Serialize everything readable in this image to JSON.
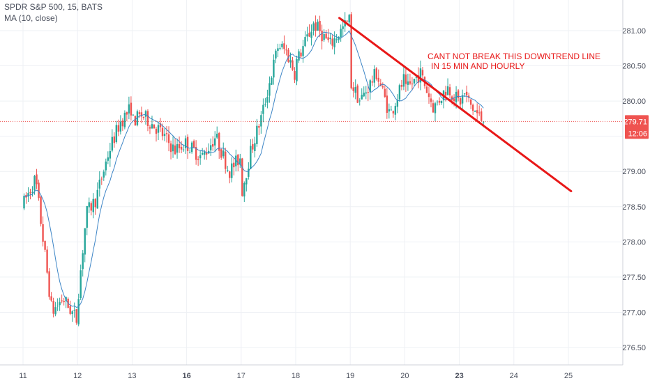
{
  "legend": {
    "symbol_line": "SPDR S&P 500, 15, BATS",
    "indicator_line": "MA (10, close)"
  },
  "annotation": {
    "line1": "CANT NOT BREAK THIS DOWNTREND LINE",
    "line2": "IN 15 MIN AND HOURLY"
  },
  "colors": {
    "up": "#26a69a",
    "down": "#ef5350",
    "ma": "#3d85c6",
    "trendline": "#e81818",
    "price_label_bg": "#ef5350",
    "grid": "#eef0f4",
    "axis_text": "#4a4f5c"
  },
  "chart_data": {
    "type": "candlestick",
    "y_axis": {
      "min": 276.35,
      "max": 281.35,
      "ticks": [
        276.5,
        277.0,
        277.5,
        278.0,
        278.5,
        279.0,
        279.5,
        280.0,
        280.5,
        281.0
      ],
      "tick_labels": [
        "276.50",
        "277.00",
        "277.50",
        "278.00",
        "278.50",
        "279.00",
        "",
        "280.00",
        "280.50",
        "281.00"
      ]
    },
    "x_axis": {
      "labels": [
        "11",
        "12",
        "13",
        "16",
        "17",
        "18",
        "19",
        "20",
        "23",
        "24",
        "25"
      ],
      "bold": [
        "16",
        "23"
      ]
    },
    "last_price": {
      "value": 279.71,
      "label": "279.71",
      "countdown": "12:06"
    },
    "ma_period": 10,
    "trend_line": {
      "from_day": 5.8,
      "from_price": 281.18,
      "to_day": 10.05,
      "to_price": 278.72
    },
    "days": [
      {
        "label": "11",
        "anchors": [
          [
            278.5,
            0.0
          ],
          [
            278.9,
            0.25
          ],
          [
            277.0,
            0.55
          ],
          [
            277.2,
            0.75
          ],
          [
            276.9,
            1.0
          ]
        ]
      },
      {
        "label": "12",
        "anchors": [
          [
            277.0,
            0.0
          ],
          [
            278.4,
            0.18
          ],
          [
            278.6,
            0.35
          ],
          [
            279.3,
            0.6
          ],
          [
            279.7,
            0.8
          ],
          [
            279.9,
            1.0
          ]
        ]
      },
      {
        "label": "13",
        "anchors": [
          [
            279.7,
            0.0
          ],
          [
            279.8,
            0.2
          ],
          [
            279.6,
            0.5
          ],
          [
            279.3,
            0.8
          ],
          [
            279.4,
            1.0
          ]
        ]
      },
      {
        "label": "16",
        "anchors": [
          [
            279.4,
            0.0
          ],
          [
            279.2,
            0.3
          ],
          [
            279.5,
            0.55
          ],
          [
            279.0,
            0.8
          ],
          [
            279.2,
            1.0
          ]
        ]
      },
      {
        "label": "17",
        "anchors": [
          [
            278.6,
            0.0
          ],
          [
            279.3,
            0.2
          ],
          [
            279.8,
            0.4
          ],
          [
            280.8,
            0.7
          ],
          [
            280.7,
            0.85
          ],
          [
            280.4,
            1.0
          ]
        ]
      },
      {
        "label": "18",
        "anchors": [
          [
            280.5,
            0.0
          ],
          [
            281.1,
            0.35
          ],
          [
            280.8,
            0.65
          ],
          [
            281.05,
            0.9
          ],
          [
            281.15,
            1.0
          ]
        ]
      },
      {
        "label": "19",
        "anchors": [
          [
            280.3,
            0.0
          ],
          [
            280.0,
            0.2
          ],
          [
            280.4,
            0.5
          ],
          [
            279.8,
            0.75
          ],
          [
            280.3,
            1.0
          ]
        ]
      },
      {
        "label": "20",
        "anchors": [
          [
            280.1,
            0.0
          ],
          [
            280.4,
            0.3
          ],
          [
            279.9,
            0.55
          ],
          [
            280.2,
            0.8
          ],
          [
            280.0,
            1.0
          ]
        ]
      },
      {
        "label": "23",
        "anchors": [
          [
            279.95,
            0.0
          ],
          [
            280.1,
            0.25
          ],
          [
            279.9,
            0.55
          ],
          [
            279.71,
            1.0
          ]
        ],
        "partial": 0.45
      }
    ]
  }
}
